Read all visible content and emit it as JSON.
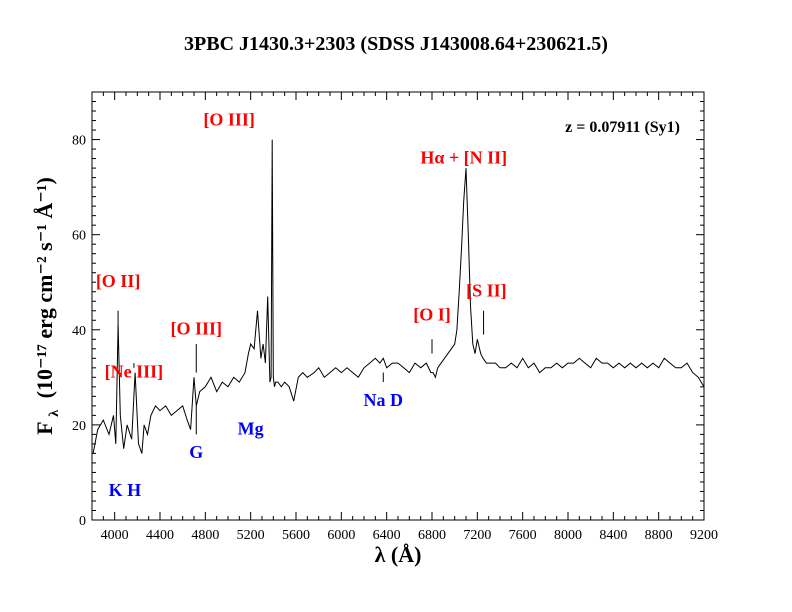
{
  "chart_data": {
    "type": "line",
    "title": "3PBC J1430.3+2303  (SDSS J143008.64+230621.5)",
    "xlabel": "λ (Å)",
    "ylabel": "F",
    "ylabel_sub": "λ",
    "ylabel_units": "(10⁻¹⁷ erg cm⁻² s⁻¹ Å⁻¹)",
    "xlim": [
      3800,
      9200
    ],
    "ylim": [
      0,
      90
    ],
    "x_ticks": [
      4000,
      4400,
      4800,
      5200,
      5600,
      6000,
      6400,
      6800,
      7200,
      7600,
      8000,
      8400,
      8800,
      9200
    ],
    "y_ticks": [
      0,
      20,
      40,
      60,
      80
    ],
    "redshift_label": "z = 0.07911 (Sy1)",
    "line_color": "#000000",
    "emission_color": "#ff0000",
    "absorption_color": "#0000ff",
    "series": [
      {
        "x": [
          3810,
          3850,
          3900,
          3950,
          3990,
          4010,
          4030,
          4050,
          4080,
          4110,
          4150,
          4180,
          4210,
          4240,
          4260,
          4290,
          4320,
          4360,
          4400,
          4450,
          4500,
          4550,
          4600,
          4640,
          4670,
          4700,
          4720,
          4750,
          4800,
          4850,
          4900,
          4950,
          5000,
          5050,
          5100,
          5150,
          5180,
          5200,
          5230,
          5260,
          5290,
          5310,
          5330,
          5350,
          5370,
          5380,
          5390,
          5400,
          5410,
          5420,
          5440,
          5470,
          5500,
          5540,
          5580,
          5620,
          5660,
          5700,
          5760,
          5800,
          5850,
          5900,
          5950,
          6000,
          6050,
          6100,
          6150,
          6200,
          6250,
          6300,
          6340,
          6370,
          6400,
          6450,
          6500,
          6550,
          6600,
          6650,
          6700,
          6750,
          6790,
          6810,
          6830,
          6850,
          6880,
          6910,
          6940,
          6970,
          7000,
          7020,
          7040,
          7060,
          7080,
          7100,
          7120,
          7140,
          7160,
          7180,
          7200,
          7230,
          7250,
          7280,
          7320,
          7360,
          7400,
          7450,
          7500,
          7550,
          7600,
          7650,
          7700,
          7750,
          7800,
          7850,
          7900,
          7950,
          8000,
          8050,
          8100,
          8150,
          8200,
          8250,
          8300,
          8350,
          8400,
          8450,
          8500,
          8550,
          8600,
          8650,
          8700,
          8750,
          8800,
          8850,
          8900,
          8950,
          9000,
          9050,
          9100,
          9150,
          9200
        ],
        "y": [
          14,
          19,
          21,
          18,
          22,
          16,
          41,
          22,
          15,
          20,
          17,
          31,
          16,
          14,
          20,
          18,
          22,
          24,
          23,
          24,
          22,
          23,
          24,
          21,
          19,
          30,
          24,
          27,
          28,
          30,
          27,
          29,
          28,
          30,
          29,
          31,
          35,
          37,
          36,
          44,
          34,
          37,
          33,
          47,
          29,
          30,
          80,
          30,
          28,
          29,
          29,
          28,
          29,
          28,
          25,
          30,
          31,
          30,
          31,
          32,
          30,
          31,
          32,
          31,
          32,
          31,
          30,
          32,
          33,
          34,
          33,
          34,
          32,
          33,
          33,
          32,
          31,
          33,
          32,
          33,
          31,
          31,
          30,
          32,
          33,
          34,
          35,
          36,
          37,
          40,
          48,
          57,
          67,
          74,
          60,
          45,
          37,
          35,
          38,
          35,
          34,
          33,
          33,
          33,
          32,
          32,
          33,
          32,
          34,
          32,
          33,
          31,
          32,
          32,
          33,
          32,
          33,
          33,
          34,
          33,
          32,
          34,
          33,
          33,
          32,
          33,
          32,
          33,
          32,
          33,
          32,
          33,
          32,
          34,
          33,
          32,
          32,
          33,
          31,
          30,
          28
        ]
      }
    ],
    "annotations": [
      {
        "text": "[O III]",
        "x": 5010,
        "y": 83,
        "kind": "emission",
        "pointer": {
          "x": 5010,
          "y1": 80,
          "y2": 80
        }
      },
      {
        "text": "Hα + [N II]",
        "x": 7080,
        "y": 75,
        "kind": "emission"
      },
      {
        "text": "[O II]",
        "x": 4030,
        "y": 49,
        "kind": "emission",
        "pointer": {
          "x": 4030,
          "y1": 36,
          "y2": 44
        }
      },
      {
        "text": "[O III]",
        "x": 4720,
        "y": 39,
        "kind": "emission",
        "pointer": {
          "x": 4720,
          "y1": 31,
          "y2": 37
        }
      },
      {
        "text": "[Ne III]",
        "x": 4170,
        "y": 30,
        "kind": "emission",
        "pointer": {
          "x": 4170,
          "y1": 32,
          "y2": 33
        }
      },
      {
        "text": "[O I]",
        "x": 6800,
        "y": 42,
        "kind": "emission",
        "pointer": {
          "x": 6800,
          "y1": 35,
          "y2": 38
        }
      },
      {
        "text": "[S II]",
        "x": 7280,
        "y": 47,
        "kind": "emission",
        "pointer": {
          "x": 7255,
          "y1": 39,
          "y2": 44
        }
      },
      {
        "text": "K H",
        "x": 4090,
        "y": 5,
        "kind": "absorption"
      },
      {
        "text": "G",
        "x": 4720,
        "y": 13,
        "kind": "absorption",
        "pointer": {
          "x": 4720,
          "y1": 18,
          "y2": 24
        }
      },
      {
        "text": "Mg",
        "x": 5200,
        "y": 18,
        "kind": "absorption"
      },
      {
        "text": "Na D",
        "x": 6370,
        "y": 24,
        "kind": "absorption",
        "pointer": {
          "x": 6370,
          "y1": 29,
          "y2": 31
        }
      }
    ]
  }
}
